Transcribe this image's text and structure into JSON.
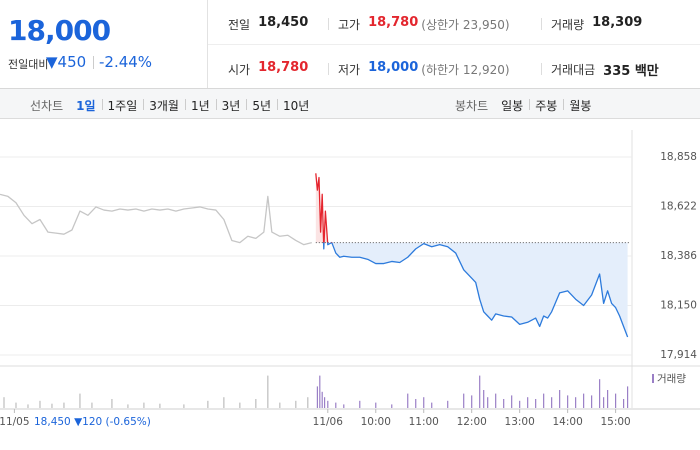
{
  "header": {
    "price": "18,000",
    "change_label": "전일대비",
    "change": "▼450",
    "change_rate": "-2.44%",
    "stats": [
      [
        {
          "label": "전일",
          "value": "18,450"
        },
        {
          "label": "고가",
          "value": "18,780",
          "note": "(상한가 23,950)"
        },
        {
          "label": "거래량",
          "value": "18,309"
        }
      ],
      [
        {
          "label": "시가",
          "value": "18,780"
        },
        {
          "label": "저가",
          "value": "18,000",
          "note": "(하한가 12,920)"
        },
        {
          "label": "거래대금",
          "value": "335 백만"
        }
      ]
    ]
  },
  "toolbar": {
    "line_label": "선차트",
    "line_options": [
      "1일",
      "1주일",
      "3개월",
      "1년",
      "3년",
      "5년",
      "10년"
    ],
    "selected": 0,
    "candle_label": "봉차트",
    "candle_options": [
      "일봉",
      "주봉",
      "월봉"
    ]
  },
  "chart_data": {
    "type": "line",
    "xlim": [
      130,
      918
    ],
    "xticks": [
      {
        "value": 148,
        "label": "11/05"
      },
      {
        "value": 540,
        "label": "11/06"
      },
      {
        "value": 600,
        "label": "10:00"
      },
      {
        "value": 660,
        "label": "11:00"
      },
      {
        "value": 720,
        "label": "12:00"
      },
      {
        "value": 780,
        "label": "13:00"
      },
      {
        "value": 840,
        "label": "14:00"
      },
      {
        "value": 900,
        "label": "15:00"
      }
    ],
    "ylim": [
      17914,
      18858
    ],
    "yticks": [
      {
        "value": 18858,
        "label": "18,858"
      },
      {
        "value": 18622,
        "label": "18,622"
      },
      {
        "value": 18386,
        "label": "18,386"
      },
      {
        "value": 18150,
        "label": "18,150"
      },
      {
        "value": 17914,
        "label": "17,914"
      }
    ],
    "grid": true,
    "baseline": 18450,
    "annotation": "18,450 ▼120 (-0.65%)",
    "series": [
      {
        "color": "#c6c6c6",
        "x": [
          130,
          140,
          150,
          160,
          170,
          180,
          190,
          200,
          210,
          220,
          230,
          240,
          250,
          260,
          270,
          280,
          290,
          300,
          310,
          320,
          330,
          340,
          350,
          360,
          370,
          380,
          390,
          400,
          410,
          420,
          430,
          440,
          450,
          460,
          465,
          470,
          480,
          490,
          500,
          510,
          520
        ],
        "values": [
          18680,
          18670,
          18640,
          18580,
          18540,
          18560,
          18500,
          18495,
          18490,
          18510,
          18600,
          18580,
          18620,
          18605,
          18600,
          18610,
          18605,
          18610,
          18600,
          18610,
          18605,
          18610,
          18600,
          18610,
          18615,
          18620,
          18610,
          18605,
          18560,
          18460,
          18450,
          18480,
          18470,
          18500,
          18670,
          18500,
          18480,
          18485,
          18460,
          18440,
          18450
        ]
      },
      {
        "color": "#2d7bdc",
        "up_color": "#e5252e",
        "fill": "#e4eefb",
        "up_fill": "#fbe4e4",
        "x": [
          525,
          527,
          529,
          531,
          533,
          535,
          537,
          540,
          545,
          550,
          555,
          560,
          570,
          580,
          590,
          600,
          610,
          620,
          630,
          640,
          650,
          660,
          670,
          680,
          690,
          700,
          710,
          720,
          725,
          730,
          735,
          740,
          745,
          750,
          760,
          770,
          780,
          790,
          800,
          805,
          810,
          815,
          820,
          830,
          840,
          850,
          860,
          870,
          880,
          885,
          890,
          895,
          900,
          905,
          910,
          915
        ],
        "values": [
          18780,
          18700,
          18760,
          18500,
          18680,
          18420,
          18600,
          18440,
          18450,
          18400,
          18380,
          18385,
          18380,
          18380,
          18370,
          18350,
          18350,
          18360,
          18355,
          18380,
          18420,
          18445,
          18430,
          18440,
          18430,
          18400,
          18320,
          18280,
          18260,
          18180,
          18120,
          18100,
          18080,
          18110,
          18100,
          18095,
          18060,
          18070,
          18090,
          18050,
          18100,
          18090,
          18120,
          18210,
          18220,
          18180,
          18150,
          18200,
          18300,
          18160,
          18220,
          18160,
          18140,
          18100,
          18050,
          18000
        ]
      }
    ],
    "volume": {
      "name": "거래량",
      "ylim": [
        0,
        1000
      ],
      "series": [
        {
          "color": "#bdbdbd",
          "x": [
            135,
            150,
            165,
            180,
            195,
            210,
            230,
            245,
            270,
            290,
            310,
            330,
            360,
            390,
            410,
            430,
            450,
            465,
            480,
            500,
            515
          ],
          "values": [
            300,
            150,
            100,
            200,
            120,
            150,
            400,
            150,
            250,
            100,
            150,
            120,
            100,
            200,
            300,
            150,
            250,
            900,
            150,
            200,
            300
          ]
        },
        {
          "color": "#9a7fc6",
          "x": [
            527,
            530,
            533,
            536,
            540,
            550,
            560,
            580,
            600,
            620,
            640,
            650,
            660,
            670,
            690,
            710,
            720,
            730,
            735,
            740,
            750,
            760,
            770,
            780,
            790,
            800,
            810,
            820,
            830,
            840,
            850,
            860,
            870,
            880,
            885,
            890,
            900,
            910,
            915
          ],
          "values": [
            600,
            900,
            450,
            300,
            200,
            150,
            100,
            200,
            150,
            100,
            400,
            250,
            300,
            150,
            200,
            400,
            350,
            900,
            500,
            300,
            400,
            250,
            350,
            200,
            300,
            250,
            400,
            300,
            500,
            350,
            300,
            400,
            350,
            800,
            300,
            500,
            400,
            250,
            600
          ]
        }
      ]
    }
  }
}
